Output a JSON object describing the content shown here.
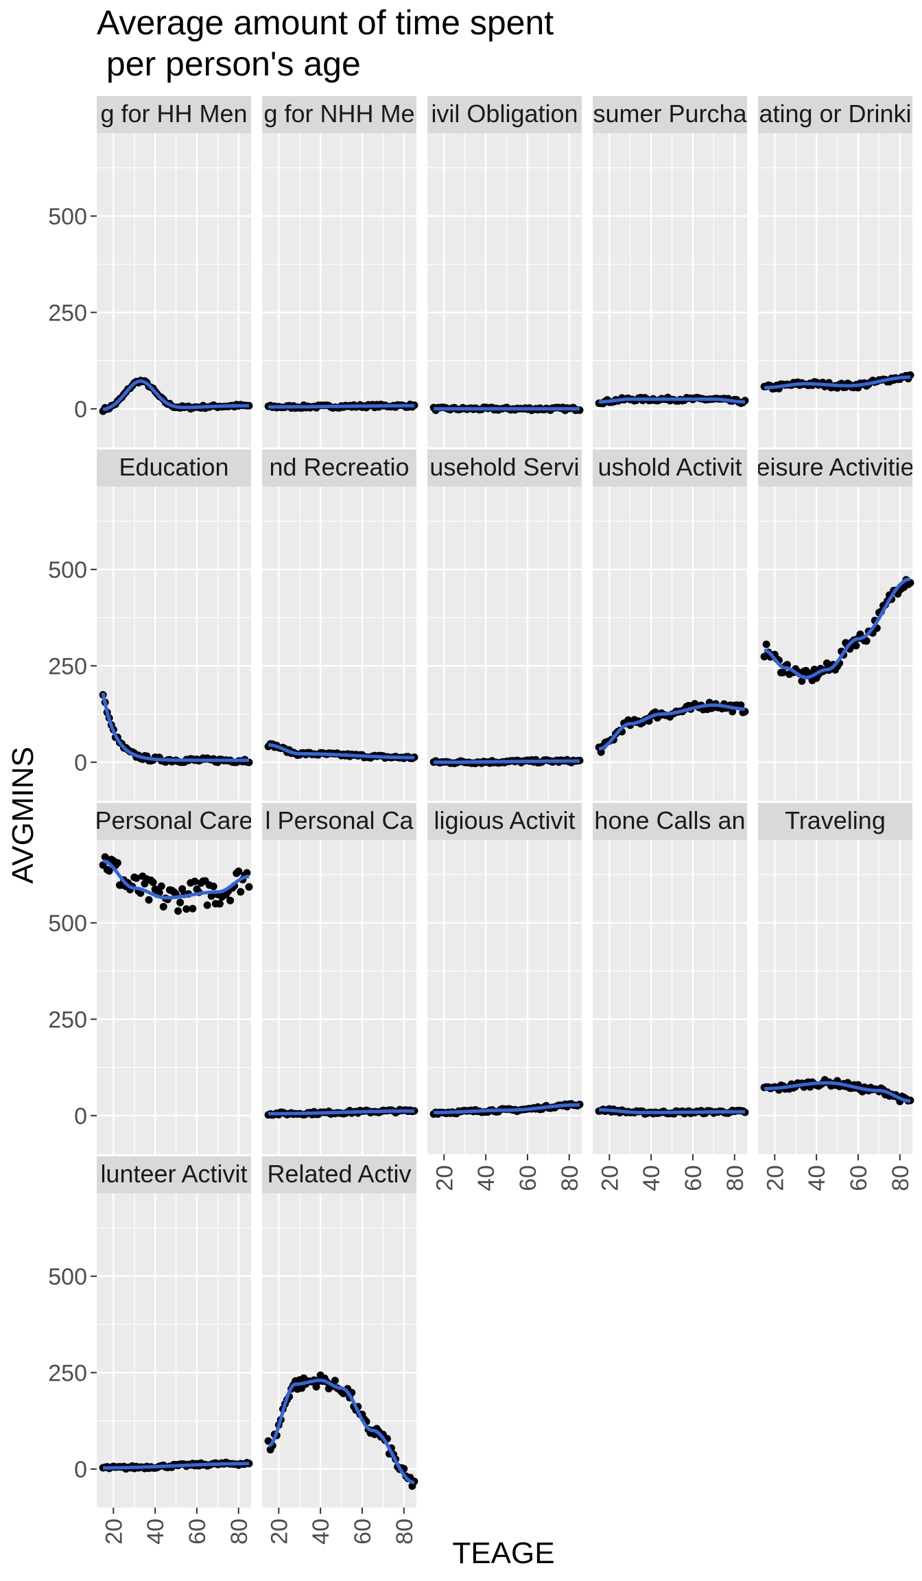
{
  "chart_data": {
    "type": "scatter",
    "title": "Average amount of time spent\n per person's age",
    "xlabel": "TEAGE",
    "ylabel": "AVGMINS",
    "xlim": [
      12,
      86
    ],
    "ylim": [
      -100,
      715
    ],
    "x_ticks": [
      20,
      40,
      60,
      80
    ],
    "y_ticks": [
      0,
      250,
      500
    ],
    "grid": true,
    "legend": "none",
    "colors": {
      "points": "#000000",
      "smooth": "#3366dd",
      "panel_bg": "#ebebeb",
      "strip_bg": "#d9d9d9",
      "grid": "#ffffff"
    },
    "panels": [
      {
        "label": "g for HH Men",
        "shape": "bump",
        "p": [
          15,
          -5,
          33,
          72,
          10,
          85,
          8
        ]
      },
      {
        "label": "g for NHH Me",
        "shape": "flat",
        "p": [
          15,
          5,
          85,
          8,
          55,
          14
        ]
      },
      {
        "label": "ivil Obligation",
        "shape": "flat",
        "p": [
          15,
          0,
          85,
          0
        ]
      },
      {
        "label": "sumer Purcha",
        "shape": "flat",
        "p": [
          15,
          18,
          30,
          25,
          70,
          25,
          85,
          18
        ]
      },
      {
        "label": "ating or Drinki",
        "shape": "flat",
        "p": [
          15,
          55,
          35,
          65,
          55,
          60,
          85,
          82
        ]
      },
      {
        "label": "Education",
        "shape": "decay",
        "p": [
          15,
          180,
          5,
          6
        ]
      },
      {
        "label": "nd Recreatio",
        "shape": "flat",
        "p": [
          15,
          45,
          30,
          22,
          85,
          12
        ]
      },
      {
        "label": "usehold Servi",
        "shape": "flat",
        "p": [
          15,
          0,
          85,
          3
        ]
      },
      {
        "label": "ushold Activit",
        "shape": "flat",
        "p": [
          15,
          35,
          30,
          100,
          45,
          125,
          70,
          148,
          85,
          138
        ]
      },
      {
        "label": "eisure Activitie",
        "shape": "flat",
        "p": [
          15,
          290,
          25,
          245,
          35,
          220,
          45,
          240,
          60,
          320,
          85,
          475
        ]
      },
      {
        "label": "Personal Care",
        "shape": "flat",
        "p": [
          15,
          660,
          30,
          590,
          45,
          565,
          70,
          580,
          85,
          620
        ]
      },
      {
        "label": "l Personal Ca",
        "shape": "flat",
        "p": [
          15,
          5,
          85,
          12
        ]
      },
      {
        "label": "ligious Activit",
        "shape": "flat",
        "p": [
          15,
          8,
          50,
          14,
          85,
          28
        ]
      },
      {
        "label": "hone Calls an",
        "shape": "flat",
        "p": [
          15,
          15,
          35,
          8,
          85,
          10
        ]
      },
      {
        "label": "Traveling",
        "shape": "flat",
        "p": [
          15,
          70,
          45,
          85,
          70,
          65,
          85,
          38
        ]
      },
      {
        "label": "lunteer Activit",
        "shape": "flat",
        "p": [
          15,
          3,
          85,
          14
        ]
      },
      {
        "label": "Related Activ",
        "shape": "flat",
        "p": [
          15,
          60,
          28,
          220,
          40,
          230,
          50,
          210,
          65,
          100,
          85,
          -35
        ]
      }
    ]
  }
}
